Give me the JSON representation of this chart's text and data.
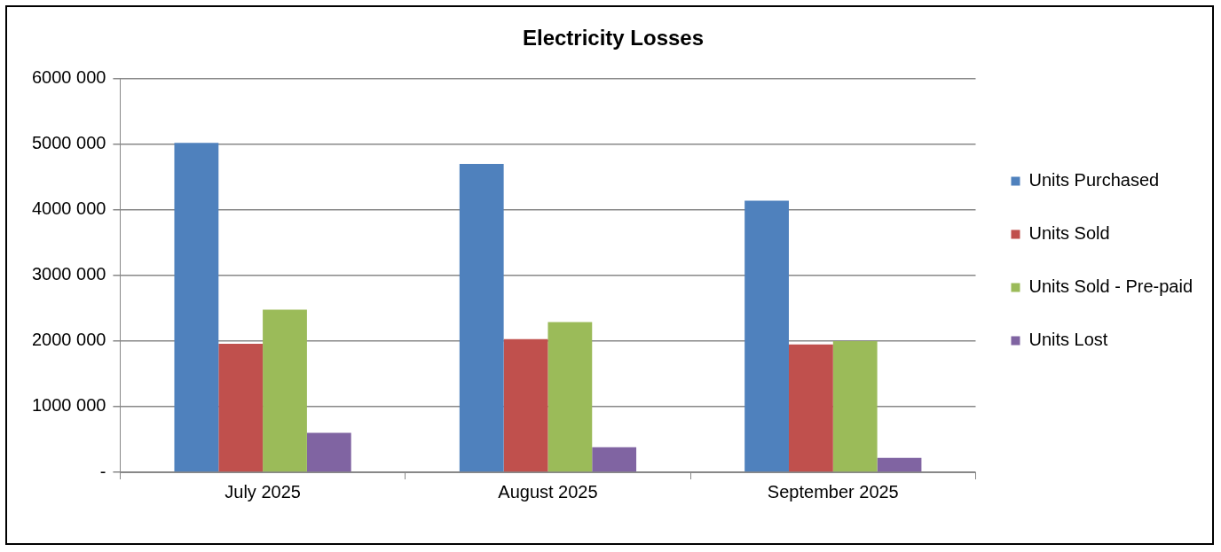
{
  "chart_data": {
    "type": "bar",
    "title": "Electricity Losses",
    "categories": [
      "July 2025",
      "August 2025",
      "September 2025"
    ],
    "series": [
      {
        "name": "Units Purchased",
        "color": "#4f81bd",
        "values": [
          5020000,
          4700000,
          4140000
        ]
      },
      {
        "name": "Units Sold",
        "color": "#c0504d",
        "values": [
          1960000,
          2030000,
          1950000
        ]
      },
      {
        "name": "Units Sold - Pre-paid",
        "color": "#9bbb59",
        "values": [
          2480000,
          2290000,
          2000000
        ]
      },
      {
        "name": "Units Lost",
        "color": "#8064a2",
        "values": [
          600000,
          380000,
          220000
        ]
      }
    ],
    "ylim": [
      0,
      6000000
    ],
    "yticks": [
      {
        "value": 0,
        "label": "-"
      },
      {
        "value": 1000000,
        "label": "1000 000"
      },
      {
        "value": 2000000,
        "label": "2000 000"
      },
      {
        "value": 3000000,
        "label": "3000 000"
      },
      {
        "value": 4000000,
        "label": "4000 000"
      },
      {
        "value": 5000000,
        "label": "5000 000"
      },
      {
        "value": 6000000,
        "label": "6000 000"
      }
    ],
    "grid": "y",
    "legend": "right"
  }
}
